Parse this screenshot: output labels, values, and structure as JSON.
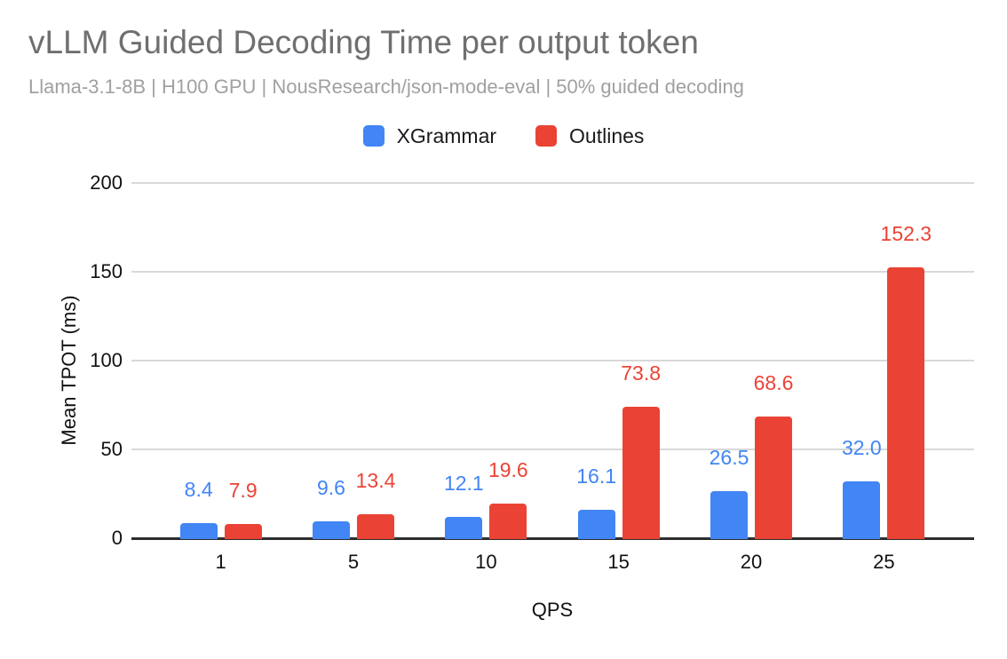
{
  "chart_data": {
    "type": "bar",
    "title": "vLLM Guided Decoding Time per output token",
    "subtitle": "Llama-3.1-8B | H100 GPU | NousResearch/json-mode-eval | 50% guided decoding",
    "categories": [
      "1",
      "5",
      "10",
      "15",
      "20",
      "25"
    ],
    "series": [
      {
        "name": "XGrammar",
        "color": "#4285F4",
        "values": [
          8.4,
          9.6,
          12.1,
          16.1,
          26.5,
          32.0
        ]
      },
      {
        "name": "Outlines",
        "color": "#EA4335",
        "values": [
          7.9,
          13.4,
          19.6,
          73.8,
          68.6,
          152.3
        ]
      }
    ],
    "xlabel": "QPS",
    "ylabel": "Mean TPOT (ms)",
    "ylim": [
      0,
      200
    ],
    "yticks": [
      0,
      50,
      100,
      150,
      200
    ],
    "grid": true,
    "legend_position": "top",
    "value_labels": true
  },
  "colors": {
    "background": "#ffffff",
    "title_text": "#6f6f6f",
    "subtitle_text": "#a0a0a0",
    "axis_line": "#2d2d2d",
    "gridline": "#d9d9d9",
    "tick_text": "#111111",
    "legend_text": "#1a1a1a"
  }
}
